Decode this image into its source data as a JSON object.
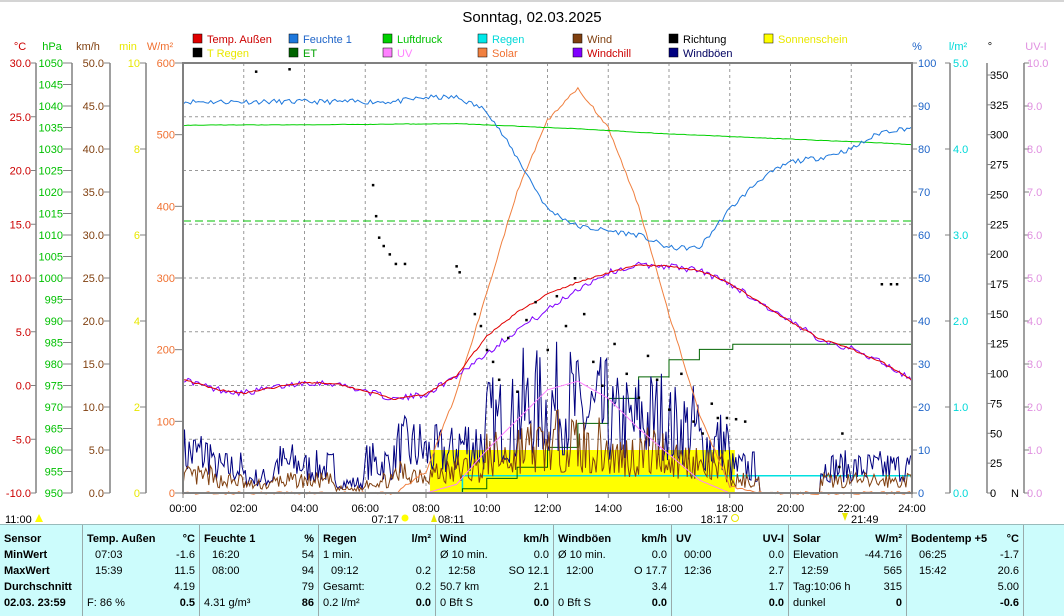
{
  "chart_data": {
    "type": "line",
    "title": "Sonntag, 02.03.2025",
    "x_ticks": [
      "00:00",
      "02:00",
      "04:00",
      "06:00",
      "08:00",
      "10:00",
      "12:00",
      "14:00",
      "16:00",
      "18:00",
      "20:00",
      "22:00",
      "24:00"
    ],
    "xlim_hours": [
      0,
      24
    ],
    "grid": true,
    "legend": [
      {
        "label": "Temp. Außen",
        "color": "#e00000"
      },
      {
        "label": "Feuchte 1",
        "color": "#1e78dc"
      },
      {
        "label": "Luftdruck",
        "color": "#00d000"
      },
      {
        "label": "Regen",
        "color": "#00e8e8"
      },
      {
        "label": "Wind",
        "color": "#804010"
      },
      {
        "label": "Richtung",
        "color": "#000000"
      },
      {
        "label": "Sonnenschein",
        "color": "#ffff00"
      },
      {
        "label": "T Regen",
        "color": "#000000"
      },
      {
        "label": "ET",
        "color": "#006400"
      },
      {
        "label": "UV",
        "color": "#ff80ff"
      },
      {
        "label": "Solar",
        "color": "#f08040"
      },
      {
        "label": "Windchill",
        "color": "#8000ff"
      },
      {
        "label": "Windböen",
        "color": "#000080"
      }
    ],
    "legend_text_colors": [
      "#cc0000",
      "#1e64c8",
      "#00c000",
      "#00d8d8",
      "#804010",
      "#000000",
      "#e8e800",
      "#e8e800",
      "#00a000",
      "#ff80ff",
      "#f07030",
      "#cc0000",
      "#000060"
    ],
    "axes": {
      "temp": {
        "unit": "°C",
        "range": [
          -10,
          30
        ],
        "ticks": [
          "30.0",
          "25.0",
          "20.0",
          "15.0",
          "10.0",
          "5.0",
          "0.0",
          "-5.0",
          "-10.0"
        ],
        "color": "#cc0000"
      },
      "pressure": {
        "unit": "hPa",
        "range": [
          950,
          1050
        ],
        "ticks": [
          "1050",
          "1045",
          "1040",
          "1035",
          "1030",
          "1025",
          "1020",
          "1015",
          "1010",
          "1005",
          "1000",
          "995",
          "990",
          "985",
          "980",
          "975",
          "970",
          "965",
          "960",
          "955",
          "950"
        ],
        "color": "#00c000"
      },
      "wind": {
        "unit": "km/h",
        "range": [
          0,
          50
        ],
        "ticks": [
          "50.0",
          "45.0",
          "40.0",
          "35.0",
          "30.0",
          "25.0",
          "20.0",
          "15.0",
          "10.0",
          "5.0",
          "0.0"
        ],
        "color": "#804010"
      },
      "sunshine": {
        "unit": "min",
        "range": [
          0,
          10
        ],
        "ticks": [
          "10",
          "8",
          "6",
          "4",
          "2",
          "0"
        ],
        "color": "#e8e800"
      },
      "solar": {
        "unit": "W/m²",
        "range": [
          0,
          600
        ],
        "ticks": [
          "600",
          "500",
          "400",
          "300",
          "200",
          "100",
          "0"
        ],
        "color": "#f07030"
      },
      "humidity": {
        "unit": "%",
        "range": [
          0,
          100
        ],
        "ticks": [
          "100",
          "90",
          "80",
          "70",
          "60",
          "50",
          "40",
          "30",
          "20",
          "10",
          "0"
        ],
        "color": "#1e64c8"
      },
      "rain": {
        "unit": "l/m²",
        "range": [
          0,
          5
        ],
        "ticks": [
          "5.0",
          "4.0",
          "3.0",
          "2.0",
          "1.0",
          "0.0"
        ],
        "color": "#00d8d8"
      },
      "direction": {
        "unit": "°",
        "range": [
          0,
          350
        ],
        "ticks": [
          "350",
          "325",
          "300",
          "275",
          "250",
          "225",
          "200",
          "175",
          "150",
          "125",
          "100",
          "75",
          "50",
          "25",
          "0"
        ],
        "zero_label": "N",
        "color": "#000000"
      },
      "uv": {
        "unit": "UV-I",
        "range": [
          0,
          10
        ],
        "ticks": [
          "10.0",
          "9.0",
          "8.0",
          "7.0",
          "6.0",
          "5.0",
          "4.0",
          "3.0",
          "2.0",
          "1.0",
          "0.0"
        ],
        "color": "#e090e0"
      }
    },
    "hours": [
      0,
      1,
      2,
      3,
      4,
      5,
      6,
      7,
      8,
      9,
      10,
      11,
      12,
      13,
      14,
      15,
      16,
      17,
      18,
      19,
      20,
      21,
      22,
      23,
      24
    ],
    "series": {
      "temp": [
        0.6,
        -0.3,
        -0.7,
        -0.2,
        0.3,
        0.2,
        -0.5,
        -1.3,
        -0.8,
        0.9,
        4.6,
        6.8,
        8.5,
        9.6,
        10.5,
        11.2,
        11.1,
        10.7,
        9.5,
        7.7,
        5.9,
        4.3,
        3.4,
        2.2,
        0.5
      ],
      "windchill": [
        0.6,
        -0.3,
        -0.7,
        -0.2,
        0.3,
        0.2,
        -0.5,
        -1.3,
        -0.8,
        0.9,
        3.0,
        5.2,
        7.0,
        9.0,
        10.5,
        11.2,
        11.1,
        10.7,
        9.5,
        7.7,
        5.9,
        4.3,
        3.4,
        2.2,
        0.5
      ],
      "humidity": [
        91,
        91,
        91,
        91,
        91,
        91,
        91,
        91,
        92,
        92,
        89,
        78,
        66,
        62,
        61,
        60,
        57,
        57,
        66,
        73,
        77,
        78,
        80,
        84,
        85
      ],
      "pressure": [
        1035.5,
        1035.6,
        1035.6,
        1035.6,
        1035.6,
        1035.7,
        1035.7,
        1035.8,
        1035.8,
        1035.9,
        1035.6,
        1035.3,
        1035.0,
        1034.7,
        1034.3,
        1033.9,
        1033.5,
        1033.2,
        1032.9,
        1032.6,
        1032.3,
        1032.0,
        1031.7,
        1031.4,
        1031.0
      ],
      "solar": [
        0,
        0,
        0,
        0,
        0,
        0,
        0,
        0,
        30,
        140,
        280,
        420,
        520,
        565,
        510,
        400,
        250,
        110,
        10,
        0,
        0,
        0,
        0,
        0,
        0
      ],
      "uv": [
        0,
        0,
        0,
        0,
        0,
        0,
        0,
        0,
        0,
        0.2,
        1.0,
        1.7,
        2.4,
        2.6,
        2.2,
        1.5,
        0.9,
        0.3,
        0,
        0,
        0,
        0,
        0,
        0,
        0
      ],
      "gust_max": [
        8,
        5,
        3,
        6,
        5,
        2,
        6,
        9,
        8,
        10,
        14,
        17,
        17.7,
        16,
        14,
        15,
        13,
        10,
        5,
        0,
        0,
        5,
        5,
        5
      ],
      "wind_max": [
        4,
        3,
        2,
        3,
        3,
        1,
        3,
        5,
        5,
        6,
        9,
        11,
        12.1,
        11,
        9,
        10,
        8,
        6,
        3,
        0,
        0,
        3,
        3,
        3
      ]
    },
    "pressure_reference": 1013.25,
    "rain_total": {
      "from": "09:12",
      "value": 0.2
    },
    "sunshine_period": {
      "from": "08:08",
      "to": "18:10",
      "minutes_per_interval": 1
    },
    "et_steps": [
      [
        9.2,
        0.05
      ],
      [
        10.0,
        0.17
      ],
      [
        11.0,
        0.3
      ],
      [
        12.0,
        0.53
      ],
      [
        13.0,
        0.81
      ],
      [
        14.0,
        1.1
      ],
      [
        15.0,
        1.35
      ],
      [
        16.0,
        1.55
      ],
      [
        17.0,
        1.67
      ],
      [
        18.1,
        1.73
      ],
      [
        24,
        1.73
      ]
    ],
    "direction_points": [
      [
        2.4,
        353
      ],
      [
        3.5,
        355
      ],
      [
        6.25,
        258
      ],
      [
        6.35,
        232
      ],
      [
        6.45,
        214
      ],
      [
        6.6,
        207
      ],
      [
        6.8,
        200
      ],
      [
        7.0,
        192
      ],
      [
        7.3,
        192
      ],
      [
        9.0,
        190
      ],
      [
        9.1,
        185
      ],
      [
        9.6,
        150
      ],
      [
        9.8,
        140
      ],
      [
        10.0,
        120
      ],
      [
        10.2,
        110
      ],
      [
        10.4,
        95
      ],
      [
        10.7,
        130
      ],
      [
        11.0,
        85
      ],
      [
        11.3,
        145
      ],
      [
        11.6,
        160
      ],
      [
        12.0,
        120
      ],
      [
        12.3,
        165
      ],
      [
        12.6,
        140
      ],
      [
        12.9,
        180
      ],
      [
        13.2,
        150
      ],
      [
        13.5,
        110
      ],
      [
        13.8,
        90
      ],
      [
        14.2,
        125
      ],
      [
        14.6,
        100
      ],
      [
        15.0,
        80
      ],
      [
        15.3,
        115
      ],
      [
        15.6,
        95
      ],
      [
        16.0,
        70
      ],
      [
        16.4,
        100
      ],
      [
        16.8,
        60
      ],
      [
        17.1,
        50
      ],
      [
        17.4,
        75
      ],
      [
        17.6,
        63
      ],
      [
        17.9,
        63
      ],
      [
        18.2,
        62
      ],
      [
        18.5,
        60
      ],
      [
        21.6,
        22
      ],
      [
        21.7,
        50
      ],
      [
        23.0,
        175
      ],
      [
        23.3,
        175
      ],
      [
        23.5,
        175
      ]
    ],
    "astro": {
      "left": "11:00",
      "sunrise": "07:17",
      "moonrise": "08:11",
      "sunset": "18:17",
      "moonset": "21:49"
    }
  },
  "table": {
    "sensor": {
      "header": "Sensor",
      "rows": [
        "MinWert",
        "MaxWert",
        "Durchschnitt",
        "02.03.  23:59"
      ]
    },
    "columns": [
      {
        "name": "Temp. Außen",
        "unit": "°C",
        "rows": [
          [
            "07:03",
            "-1.6"
          ],
          [
            "15:39",
            "11.5"
          ],
          [
            "",
            "4.19"
          ],
          [
            "F: 86 %",
            "0.5"
          ]
        ]
      },
      {
        "name": "Feuchte 1",
        "unit": "%",
        "rows": [
          [
            "16:20",
            "54"
          ],
          [
            "08:00",
            "94"
          ],
          [
            "",
            "79"
          ],
          [
            "4.31 g/m³",
            "86"
          ]
        ]
      },
      {
        "name": "Regen",
        "unit": "l/m²",
        "rows": [
          [
            "1 min.",
            ""
          ],
          [
            "09:12",
            "0.2"
          ],
          [
            "Gesamt:",
            "0.2"
          ],
          [
            "0.2 l/m²",
            "0.0"
          ]
        ]
      },
      {
        "name": "Wind",
        "unit": "km/h",
        "rows": [
          [
            "Ø 10 min.",
            "0.0"
          ],
          [
            "12:58",
            "SO 12.1"
          ],
          [
            "50.7 km",
            "2.1"
          ],
          [
            "0 Bft S",
            "0.0"
          ]
        ]
      },
      {
        "name": "Windböen",
        "unit": "km/h",
        "rows": [
          [
            "Ø 10 min.",
            "0.0"
          ],
          [
            "12:00",
            "O 17.7"
          ],
          [
            "",
            "3.4"
          ],
          [
            "0 Bft S",
            "0.0"
          ]
        ]
      },
      {
        "name": "UV",
        "unit": "UV-I",
        "rows": [
          [
            "00:00",
            "0.0"
          ],
          [
            "12:36",
            "2.7"
          ],
          [
            "",
            "1.7"
          ],
          [
            "",
            "0.0"
          ]
        ]
      },
      {
        "name": "Solar",
        "unit": "W/m²",
        "rows": [
          [
            "Elevation",
            "-44.716"
          ],
          [
            "12:59",
            "565"
          ],
          [
            "Tag:10:06 h",
            "315"
          ],
          [
            "dunkel",
            "0"
          ]
        ]
      },
      {
        "name": "Bodentemp +5",
        "unit": "°C",
        "rows": [
          [
            "06:25",
            "-1.7"
          ],
          [
            "15:42",
            "20.6"
          ],
          [
            "",
            "5.00"
          ],
          [
            "",
            "-0.6"
          ]
        ]
      }
    ]
  }
}
